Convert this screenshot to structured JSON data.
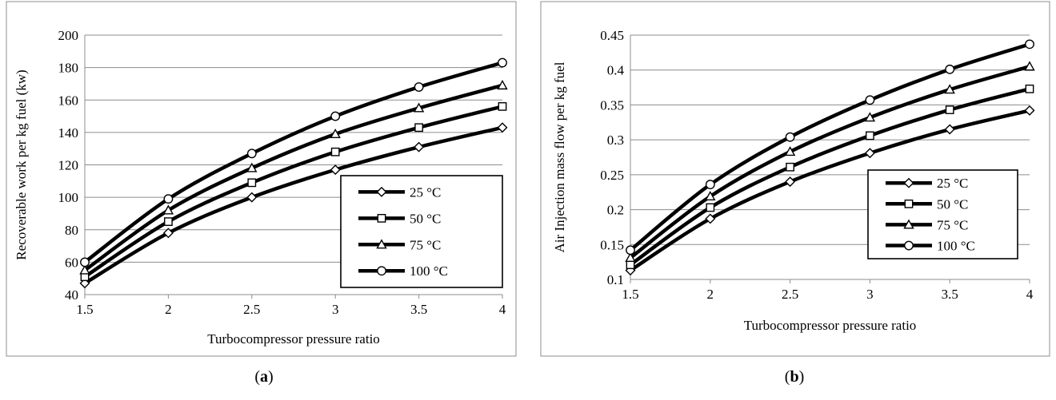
{
  "chart_data": [
    {
      "type": "line",
      "panel_label": "a",
      "title": "",
      "xlabel": "Turbocompressor pressure ratio",
      "ylabel": "Recoverable  work per kg fuel (kw)",
      "x": [
        1.5,
        2,
        2.5,
        3,
        3.5,
        4
      ],
      "x_ticks": [
        "1.5",
        "2",
        "2.5",
        "3",
        "3.5",
        "4"
      ],
      "xlim": [
        1.5,
        4
      ],
      "ylim": [
        40,
        200
      ],
      "y_ticks": [
        "40",
        "60",
        "80",
        "100",
        "120",
        "140",
        "160",
        "180",
        "200"
      ],
      "grid": "horizontal",
      "legend_position": "lower-right",
      "series": [
        {
          "name": "25 °C",
          "marker": "diamond",
          "values": [
            47,
            78,
            100,
            117,
            131,
            143
          ]
        },
        {
          "name": "50  °C",
          "marker": "square",
          "values": [
            51,
            85,
            109,
            128,
            143,
            156
          ]
        },
        {
          "name": "75  °C",
          "marker": "triangle",
          "values": [
            55,
            92,
            118,
            139,
            155,
            169
          ]
        },
        {
          "name": "100  °C",
          "marker": "circle",
          "values": [
            60,
            99,
            127,
            150,
            168,
            183
          ]
        }
      ]
    },
    {
      "type": "line",
      "panel_label": "b",
      "title": "",
      "xlabel": "Turbocompressor pressure ratio",
      "ylabel": "Air Injection mass flow per kg fuel",
      "x": [
        1.5,
        2,
        2.5,
        3,
        3.5,
        4
      ],
      "x_ticks": [
        "1.5",
        "2",
        "2.5",
        "3",
        "3.5",
        "4"
      ],
      "xlim": [
        1.5,
        4
      ],
      "ylim": [
        0.1,
        0.45
      ],
      "y_ticks": [
        "0.1",
        "0.15",
        "0.2",
        "0.25",
        "0.3",
        "0.35",
        "0.4",
        "0.45"
      ],
      "grid": "horizontal",
      "legend_position": "lower-right",
      "series": [
        {
          "name": "25 °C",
          "marker": "diamond",
          "values": [
            0.113,
            0.187,
            0.24,
            0.281,
            0.315,
            0.342
          ]
        },
        {
          "name": "50  °C",
          "marker": "square",
          "values": [
            0.121,
            0.203,
            0.261,
            0.306,
            0.343,
            0.373
          ]
        },
        {
          "name": "75  °C",
          "marker": "triangle",
          "values": [
            0.131,
            0.219,
            0.283,
            0.332,
            0.372,
            0.405
          ]
        },
        {
          "name": "100  °C",
          "marker": "circle",
          "values": [
            0.142,
            0.236,
            0.304,
            0.357,
            0.401,
            0.437
          ]
        }
      ]
    }
  ],
  "captions": {
    "a": "a",
    "b": "b"
  },
  "colors": {
    "line": "#000000",
    "grid": "#8c8c8c",
    "frame": "#8c8c8c",
    "marker_fill": "#ffffff"
  }
}
